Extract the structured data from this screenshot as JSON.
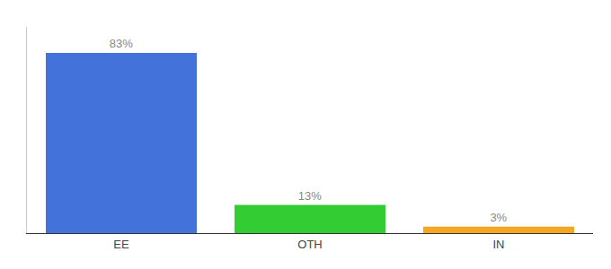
{
  "chart_data": {
    "type": "bar",
    "categories": [
      "EE",
      "OTH",
      "IN"
    ],
    "values": [
      83,
      13,
      3
    ],
    "value_labels": [
      "83%",
      "13%",
      "3%"
    ],
    "colors": [
      "#4472db",
      "#33cc33",
      "#f5a623"
    ],
    "ylim": [
      0,
      95
    ],
    "data_labels": true,
    "tick_labels": "x",
    "grid": false
  }
}
